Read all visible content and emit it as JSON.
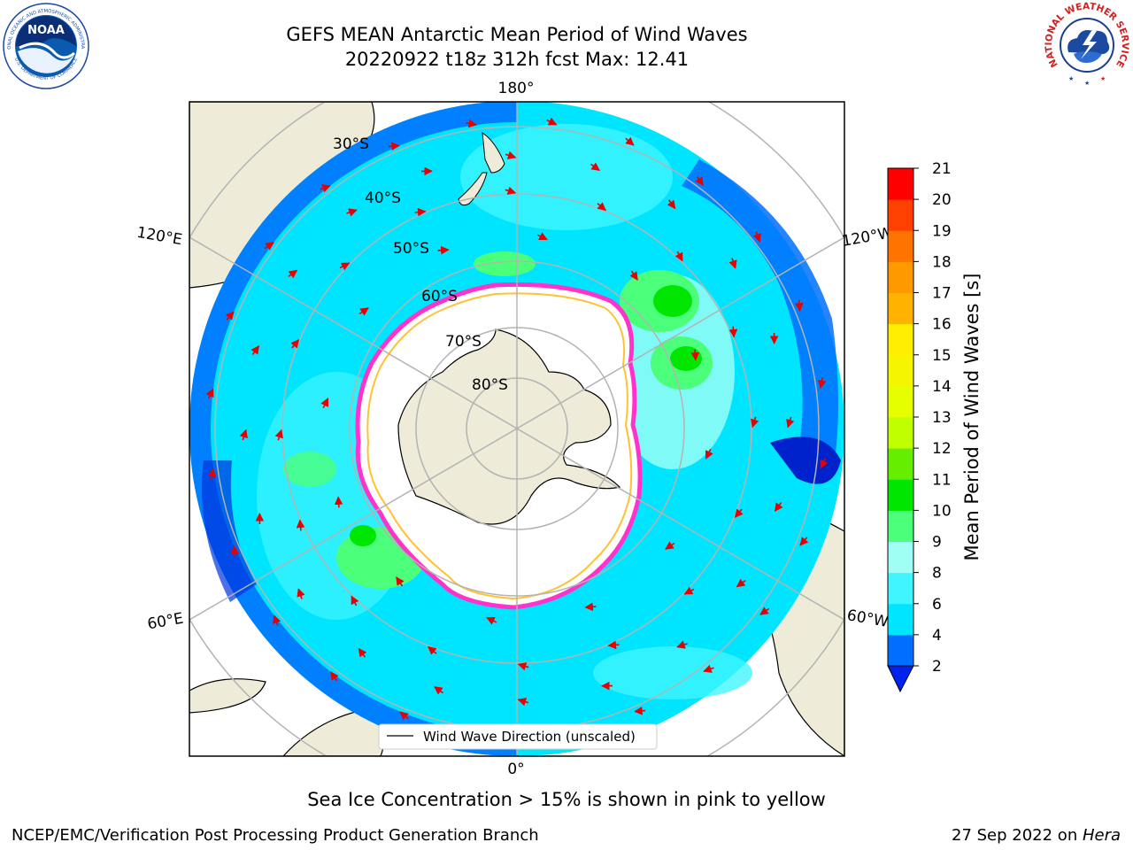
{
  "header": {
    "title_line1": "GEFS MEAN Antarctic Mean Period of Wind Waves",
    "title_line2": "20220922 t18z 312h fcst   Max: 12.41"
  },
  "logos": {
    "noaa": {
      "text": "NOAA",
      "ring_top": "NATIONAL OCEANIC AND ATMOSPHERIC ADMINISTRATION",
      "ring_bottom": "U.S. DEPARTMENT OF COMMERCE"
    },
    "nws": {
      "ring_text": "NATIONAL WEATHER SERVICE"
    }
  },
  "map": {
    "projection": "south-polar-stereographic",
    "lon_labels": [
      "180°",
      "120°E",
      "120°W",
      "60°E",
      "60°W",
      "0°"
    ],
    "lat_labels": [
      "30°S",
      "40°S",
      "50°S",
      "60°S",
      "70°S",
      "80°S"
    ],
    "legend_label": "Wind Wave Direction (unscaled)",
    "colors": {
      "land": "#eeebd9",
      "ice_edge": "#ff33cc",
      "arrow": "#e60000",
      "grid": "#b3b3b3"
    }
  },
  "colorbar": {
    "label": "Mean Period of Wind Waves [s]",
    "ticks": [
      "2",
      "4",
      "6",
      "8",
      "9",
      "10",
      "11",
      "12",
      "13",
      "14",
      "15",
      "16",
      "17",
      "18",
      "19",
      "20",
      "21"
    ],
    "colors": [
      "#006fff",
      "#00e5ff",
      "#40f5ff",
      "#a0fff5",
      "#4cff7a",
      "#00e600",
      "#66ee00",
      "#bfff00",
      "#e6ff00",
      "#f5f500",
      "#ffee00",
      "#ffb300",
      "#ff9900",
      "#ff7300",
      "#ff4000",
      "#ff0000"
    ],
    "extend_color": "#0022ee"
  },
  "footer": {
    "note": "Sea Ice Concentration > 15% is shown in pink to yellow",
    "left": "NCEP/EMC/Verification Post Processing Product Generation Branch",
    "date": "27 Sep 2022 on ",
    "host": "Hera"
  }
}
